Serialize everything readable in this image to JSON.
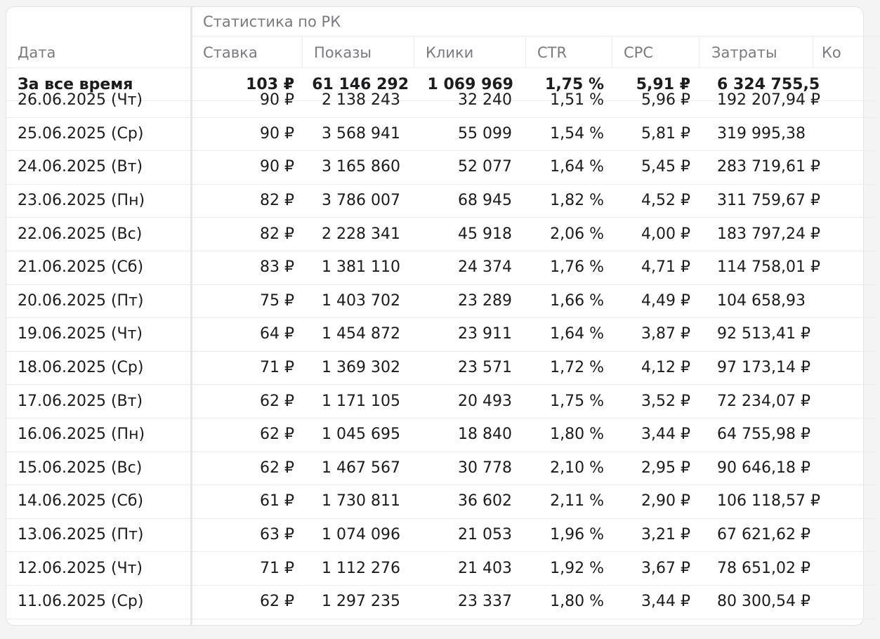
{
  "table": {
    "group_header": "Статистика по РК",
    "columns": [
      "Дата",
      "Ставка",
      "Показы",
      "Клики",
      "CTR",
      "CPC",
      "Затраты",
      "Ко"
    ],
    "total": {
      "date": "За все время",
      "bid": "103 ₽",
      "impressions": "61 146 292",
      "clicks": "1 069 969",
      "ctr": "1,75 %",
      "cpc": "5,91 ₽",
      "spend": "6 324 755,5"
    },
    "rows": [
      {
        "date": "26.06.2025 (Чт)",
        "bid": "90 ₽",
        "impressions": "2 138 243",
        "clicks": "32 240",
        "ctr": "1,51 %",
        "cpc": "5,96 ₽",
        "spend": "192 207,94 ₽"
      },
      {
        "date": "25.06.2025 (Ср)",
        "bid": "90 ₽",
        "impressions": "3 568 941",
        "clicks": "55 099",
        "ctr": "1,54 %",
        "cpc": "5,81 ₽",
        "spend": "319 995,38"
      },
      {
        "date": "24.06.2025 (Вт)",
        "bid": "90 ₽",
        "impressions": "3 165 860",
        "clicks": "52 077",
        "ctr": "1,64 %",
        "cpc": "5,45 ₽",
        "spend": "283 719,61 ₽"
      },
      {
        "date": "23.06.2025 (Пн)",
        "bid": "82 ₽",
        "impressions": "3 786 007",
        "clicks": "68 945",
        "ctr": "1,82 %",
        "cpc": "4,52 ₽",
        "spend": "311 759,67 ₽"
      },
      {
        "date": "22.06.2025 (Вс)",
        "bid": "82 ₽",
        "impressions": "2 228 341",
        "clicks": "45 918",
        "ctr": "2,06 %",
        "cpc": "4,00 ₽",
        "spend": "183 797,24 ₽"
      },
      {
        "date": "21.06.2025 (Сб)",
        "bid": "83 ₽",
        "impressions": "1 381 110",
        "clicks": "24 374",
        "ctr": "1,76 %",
        "cpc": "4,71 ₽",
        "spend": "114 758,01 ₽"
      },
      {
        "date": "20.06.2025 (Пт)",
        "bid": "75 ₽",
        "impressions": "1 403 702",
        "clicks": "23 289",
        "ctr": "1,66 %",
        "cpc": "4,49 ₽",
        "spend": "104 658,93"
      },
      {
        "date": "19.06.2025 (Чт)",
        "bid": "64 ₽",
        "impressions": "1 454 872",
        "clicks": "23 911",
        "ctr": "1,64 %",
        "cpc": "3,87 ₽",
        "spend": "92 513,41 ₽"
      },
      {
        "date": "18.06.2025 (Ср)",
        "bid": "71 ₽",
        "impressions": "1 369 302",
        "clicks": "23 571",
        "ctr": "1,72 %",
        "cpc": "4,12 ₽",
        "spend": "97 173,14 ₽"
      },
      {
        "date": "17.06.2025 (Вт)",
        "bid": "62 ₽",
        "impressions": "1 171 105",
        "clicks": "20 493",
        "ctr": "1,75 %",
        "cpc": "3,52 ₽",
        "spend": "72 234,07 ₽"
      },
      {
        "date": "16.06.2025 (Пн)",
        "bid": "62 ₽",
        "impressions": "1 045 695",
        "clicks": "18 840",
        "ctr": "1,80 %",
        "cpc": "3,44 ₽",
        "spend": "64 755,98 ₽"
      },
      {
        "date": "15.06.2025 (Вс)",
        "bid": "62 ₽",
        "impressions": "1 467 567",
        "clicks": "30 778",
        "ctr": "2,10 %",
        "cpc": "2,95 ₽",
        "spend": "90 646,18 ₽"
      },
      {
        "date": "14.06.2025 (Сб)",
        "bid": "61 ₽",
        "impressions": "1 730 811",
        "clicks": "36 602",
        "ctr": "2,11 %",
        "cpc": "2,90 ₽",
        "spend": "106 118,57 ₽"
      },
      {
        "date": "13.06.2025 (Пт)",
        "bid": "63 ₽",
        "impressions": "1 074 096",
        "clicks": "21 053",
        "ctr": "1,96 %",
        "cpc": "3,21 ₽",
        "spend": "67 621,62 ₽"
      },
      {
        "date": "12.06.2025 (Чт)",
        "bid": "71 ₽",
        "impressions": "1 112 276",
        "clicks": "21 403",
        "ctr": "1,92 %",
        "cpc": "3,67 ₽",
        "spend": "78 651,02 ₽"
      },
      {
        "date": "11.06.2025 (Ср)",
        "bid": "62 ₽",
        "impressions": "1 297 235",
        "clicks": "23 337",
        "ctr": "1,80 %",
        "cpc": "3,44 ₽",
        "spend": "80 300,54 ₽"
      }
    ]
  }
}
